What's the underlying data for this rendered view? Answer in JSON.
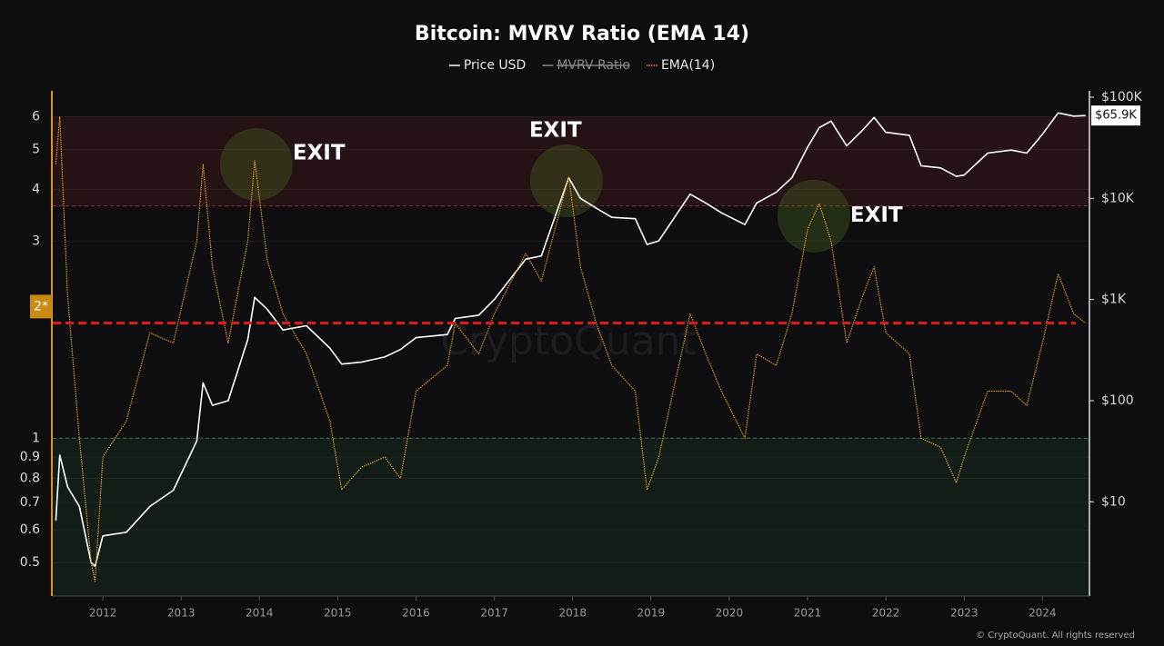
{
  "chart_data": {
    "type": "line",
    "title": "Bitcoin: MVRV Ratio (EMA 14)",
    "x": [
      2011.4,
      2011.45,
      2011.55,
      2011.7,
      2011.85,
      2011.9,
      2012.0,
      2012.3,
      2012.6,
      2012.9,
      2013.2,
      2013.28,
      2013.4,
      2013.6,
      2013.85,
      2013.94,
      2014.1,
      2014.3,
      2014.6,
      2014.9,
      2015.05,
      2015.3,
      2015.6,
      2015.8,
      2016.0,
      2016.4,
      2016.5,
      2016.8,
      2017.0,
      2017.4,
      2017.6,
      2017.95,
      2018.1,
      2018.3,
      2018.5,
      2018.8,
      2018.95,
      2019.1,
      2019.5,
      2019.7,
      2019.9,
      2020.2,
      2020.35,
      2020.6,
      2020.8,
      2021.0,
      2021.15,
      2021.3,
      2021.5,
      2021.7,
      2021.85,
      2022.0,
      2022.3,
      2022.45,
      2022.7,
      2022.9,
      2023.0,
      2023.3,
      2023.6,
      2023.8,
      2024.0,
      2024.2,
      2024.4,
      2024.55
    ],
    "series": [
      {
        "name": "Price USD",
        "color": "#ffffff",
        "axis": "y2",
        "last_label": "$65.9K",
        "values": [
          6.5,
          29,
          14,
          9,
          2.5,
          2.3,
          4.6,
          5,
          9,
          13,
          40,
          150,
          90,
          100,
          400,
          1050,
          800,
          500,
          550,
          330,
          230,
          240,
          270,
          320,
          420,
          450,
          650,
          700,
          1000,
          2500,
          2700,
          16000,
          10000,
          8000,
          6500,
          6300,
          3500,
          3800,
          11000,
          9000,
          7200,
          5500,
          9000,
          11500,
          16000,
          32000,
          50000,
          58000,
          33000,
          47000,
          63000,
          45000,
          42000,
          21000,
          20000,
          16500,
          17000,
          28000,
          30000,
          28000,
          43000,
          70000,
          65000,
          65900
        ]
      },
      {
        "name": "MVRV Ratio",
        "color": "#888888",
        "hidden": true
      },
      {
        "name": "EMA(14)",
        "color": "#d9951c",
        "axis": "y",
        "values": [
          4.6,
          6.0,
          2.2,
          1.0,
          0.5,
          0.45,
          0.9,
          1.1,
          1.8,
          1.7,
          3.0,
          4.6,
          2.6,
          1.7,
          3.0,
          4.7,
          2.7,
          2.0,
          1.6,
          1.1,
          0.75,
          0.85,
          0.9,
          0.8,
          1.3,
          1.5,
          1.9,
          1.6,
          2.0,
          2.8,
          2.4,
          4.3,
          2.6,
          1.9,
          1.5,
          1.3,
          0.75,
          0.9,
          2.0,
          1.6,
          1.3,
          1.0,
          1.6,
          1.5,
          2.0,
          3.2,
          3.7,
          3.0,
          1.7,
          2.2,
          2.6,
          1.8,
          1.6,
          1.0,
          0.95,
          0.78,
          0.9,
          1.3,
          1.3,
          1.2,
          1.7,
          2.5,
          2.0,
          1.9
        ]
      }
    ],
    "xlim": [
      2011.36,
      2024.6
    ],
    "xticks": [
      2012,
      2013,
      2014,
      2015,
      2016,
      2017,
      2018,
      2019,
      2020,
      2021,
      2022,
      2023,
      2024
    ],
    "ylim": [
      0.415,
      6.93
    ],
    "yscale": "log",
    "yticks": [
      0.5,
      0.6,
      0.7,
      0.8,
      0.9,
      1,
      3,
      4,
      5,
      6
    ],
    "y2lim": [
      1.17,
      115600
    ],
    "y2scale": "log",
    "y2ticks": [
      {
        "value": 10,
        "label": "$10"
      },
      {
        "value": 100,
        "label": "$100"
      },
      {
        "value": 1000,
        "label": "$1K"
      },
      {
        "value": 10000,
        "label": "$10K"
      },
      {
        "value": 100000,
        "label": "$100K"
      }
    ],
    "marker_label": {
      "value": 2,
      "label": "2*"
    },
    "reference_line": {
      "value": 1.9,
      "color": "#e0191b"
    },
    "zones": [
      {
        "from": 3.65,
        "to": 6,
        "color": "#b02a2a"
      },
      {
        "from": 0.415,
        "to": 1,
        "color": "#2f7a45"
      }
    ],
    "annotations": [
      {
        "text": "EXIT",
        "x": 2013.96,
        "y": 4.6,
        "position": "right"
      },
      {
        "text": "EXIT",
        "x": 2017.92,
        "y": 4.2,
        "position": "above"
      },
      {
        "text": "EXIT",
        "x": 2021.08,
        "y": 3.45,
        "position": "right"
      }
    ],
    "watermark": "CryptoQuant",
    "copyright": "© CryptoQuant. All rights reserved",
    "grid": true
  }
}
